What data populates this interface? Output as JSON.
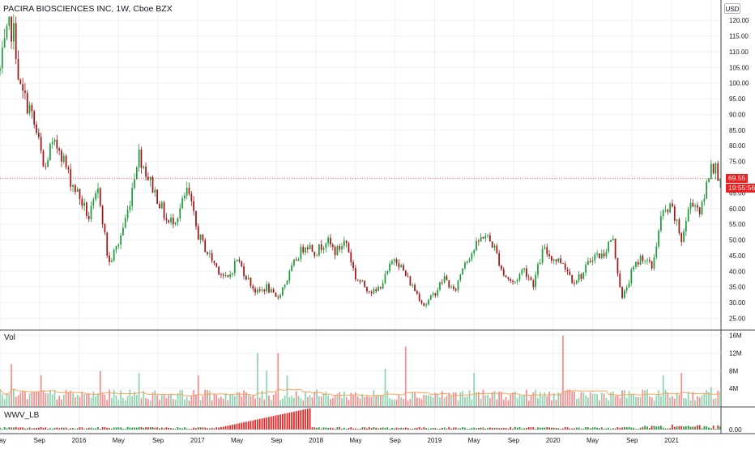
{
  "header": {
    "title": "PACIRA BIOSCIENCES INC, 1W, Cboe BZX",
    "currency": "USD"
  },
  "price_tag": {
    "last": "69.55",
    "countdown": "19:55:56"
  },
  "panes": {
    "volume_label": "Vol",
    "indicator_label": "WWV_LB"
  },
  "colors": {
    "up": "#26a69a",
    "down": "#ef5350",
    "candle_up": "#1e9b3a",
    "candle_down": "#a31515",
    "vol_up": "#8fd3b0",
    "vol_down": "#f28f8f",
    "ma": "#f7a35c",
    "grid": "#eef0f3",
    "axis": "#131722"
  },
  "chart_data": [
    {
      "type": "candlestick",
      "title": "PACIRA BIOSCIENCES INC, 1W, Cboe BZX",
      "ylabel": "USD",
      "ylim": [
        21.5,
        126.5
      ],
      "yticks": [
        "25.00",
        "30.00",
        "35.00",
        "40.00",
        "45.00",
        "50.00",
        "55.00",
        "60.00",
        "65.00",
        "70.00",
        "75.00",
        "80.00",
        "85.00",
        "90.00",
        "95.00",
        "100.00",
        "105.00",
        "110.00",
        "115.00",
        "120.00"
      ],
      "xticks": [
        "May",
        "Sep",
        "2016",
        "May",
        "Sep",
        "2017",
        "May",
        "Sep",
        "2018",
        "May",
        "Sep",
        "2019",
        "May",
        "Sep",
        "2020",
        "May",
        "Sep",
        "2021"
      ],
      "x_range": [
        "2015-01",
        "2021-02"
      ],
      "last_price": 69.55,
      "grid": true,
      "anchors": [
        {
          "t": "2015-01",
          "c": 104
        },
        {
          "t": "2015-01",
          "c": 112
        },
        {
          "t": "2015-02",
          "c": 118
        },
        {
          "t": "2015-02",
          "c": 115
        },
        {
          "t": "2015-03",
          "c": 98
        },
        {
          "t": "2015-04",
          "c": 92
        },
        {
          "t": "2015-04",
          "c": 86
        },
        {
          "t": "2015-05",
          "c": 80
        },
        {
          "t": "2015-05",
          "c": 71
        },
        {
          "t": "2015-06",
          "c": 79
        },
        {
          "t": "2015-07",
          "c": 80
        },
        {
          "t": "2015-08",
          "c": 70
        },
        {
          "t": "2015-09",
          "c": 64
        },
        {
          "t": "2015-10",
          "c": 57
        },
        {
          "t": "2015-11",
          "c": 66
        },
        {
          "t": "2015-12",
          "c": 42
        },
        {
          "t": "2016-01",
          "c": 49
        },
        {
          "t": "2016-02",
          "c": 60
        },
        {
          "t": "2016-03",
          "c": 78
        },
        {
          "t": "2016-04",
          "c": 70
        },
        {
          "t": "2016-05",
          "c": 63
        },
        {
          "t": "2016-06",
          "c": 55
        },
        {
          "t": "2016-07",
          "c": 58
        },
        {
          "t": "2016-08",
          "c": 66
        },
        {
          "t": "2016-09",
          "c": 52
        },
        {
          "t": "2016-10",
          "c": 46
        },
        {
          "t": "2016-11",
          "c": 41
        },
        {
          "t": "2016-12",
          "c": 37
        },
        {
          "t": "2017-01",
          "c": 44
        },
        {
          "t": "2017-02",
          "c": 38
        },
        {
          "t": "2017-03",
          "c": 33
        },
        {
          "t": "2017-04",
          "c": 35
        },
        {
          "t": "2017-05",
          "c": 31
        },
        {
          "t": "2017-06",
          "c": 37
        },
        {
          "t": "2017-07",
          "c": 44
        },
        {
          "t": "2017-08",
          "c": 49
        },
        {
          "t": "2017-09",
          "c": 46
        },
        {
          "t": "2017-10",
          "c": 50
        },
        {
          "t": "2017-11",
          "c": 46
        },
        {
          "t": "2017-12",
          "c": 50
        },
        {
          "t": "2018-01",
          "c": 38
        },
        {
          "t": "2018-02",
          "c": 35
        },
        {
          "t": "2018-03",
          "c": 33
        },
        {
          "t": "2018-04",
          "c": 38
        },
        {
          "t": "2018-05",
          "c": 45
        },
        {
          "t": "2018-06",
          "c": 39
        },
        {
          "t": "2018-07",
          "c": 34
        },
        {
          "t": "2018-08",
          "c": 29
        },
        {
          "t": "2018-09",
          "c": 33
        },
        {
          "t": "2018-10",
          "c": 38
        },
        {
          "t": "2018-11",
          "c": 33
        },
        {
          "t": "2018-12",
          "c": 43
        },
        {
          "t": "2019-01",
          "c": 47
        },
        {
          "t": "2019-02",
          "c": 52
        },
        {
          "t": "2019-03",
          "c": 48
        },
        {
          "t": "2019-04",
          "c": 39
        },
        {
          "t": "2019-05",
          "c": 36
        },
        {
          "t": "2019-06",
          "c": 41
        },
        {
          "t": "2019-07",
          "c": 36
        },
        {
          "t": "2019-08",
          "c": 47
        },
        {
          "t": "2019-09",
          "c": 44
        },
        {
          "t": "2019-10",
          "c": 43
        },
        {
          "t": "2019-11",
          "c": 37
        },
        {
          "t": "2019-12",
          "c": 39
        },
        {
          "t": "2020-01",
          "c": 45
        },
        {
          "t": "2020-02",
          "c": 45
        },
        {
          "t": "2020-03",
          "c": 51
        },
        {
          "t": "2020-04",
          "c": 31
        },
        {
          "t": "2020-05",
          "c": 40
        },
        {
          "t": "2020-06",
          "c": 45
        },
        {
          "t": "2020-07",
          "c": 41
        },
        {
          "t": "2020-08",
          "c": 58
        },
        {
          "t": "2020-09",
          "c": 60
        },
        {
          "t": "2020-10",
          "c": 50
        },
        {
          "t": "2020-11",
          "c": 63
        },
        {
          "t": "2020-12",
          "c": 59
        },
        {
          "t": "2021-01",
          "c": 75
        },
        {
          "t": "2021-02",
          "c": 69.55
        }
      ]
    },
    {
      "type": "bar",
      "title": "Vol",
      "yticks": [
        "4M",
        "8M",
        "12M",
        "16M"
      ],
      "ylim": [
        0,
        16.5
      ],
      "unit": "M",
      "typical": 2.8,
      "spikes": [
        {
          "t": "2015-02",
          "v": 9.5
        },
        {
          "t": "2015-05",
          "v": 7.0
        },
        {
          "t": "2015-11",
          "v": 8.0
        },
        {
          "t": "2016-03",
          "v": 7.5
        },
        {
          "t": "2016-09",
          "v": 7.0
        },
        {
          "t": "2017-03",
          "v": 12.0
        },
        {
          "t": "2017-04",
          "v": 8.0
        },
        {
          "t": "2017-05",
          "v": 12.0
        },
        {
          "t": "2017-06",
          "v": 7.0
        },
        {
          "t": "2018-04",
          "v": 8.5
        },
        {
          "t": "2018-06",
          "v": 13.5
        },
        {
          "t": "2019-01",
          "v": 7.5
        },
        {
          "t": "2019-10",
          "v": 16.0
        },
        {
          "t": "2020-08",
          "v": 7.0
        },
        {
          "t": "2020-10",
          "v": 7.5
        },
        {
          "t": "2021-01",
          "v": 4.3
        }
      ]
    },
    {
      "type": "bar",
      "title": "WWV_LB",
      "yticks": [
        "0.00"
      ],
      "note": "bars rise steadily from 2016-11 to 2017-08 (peak), small elsewhere"
    }
  ]
}
